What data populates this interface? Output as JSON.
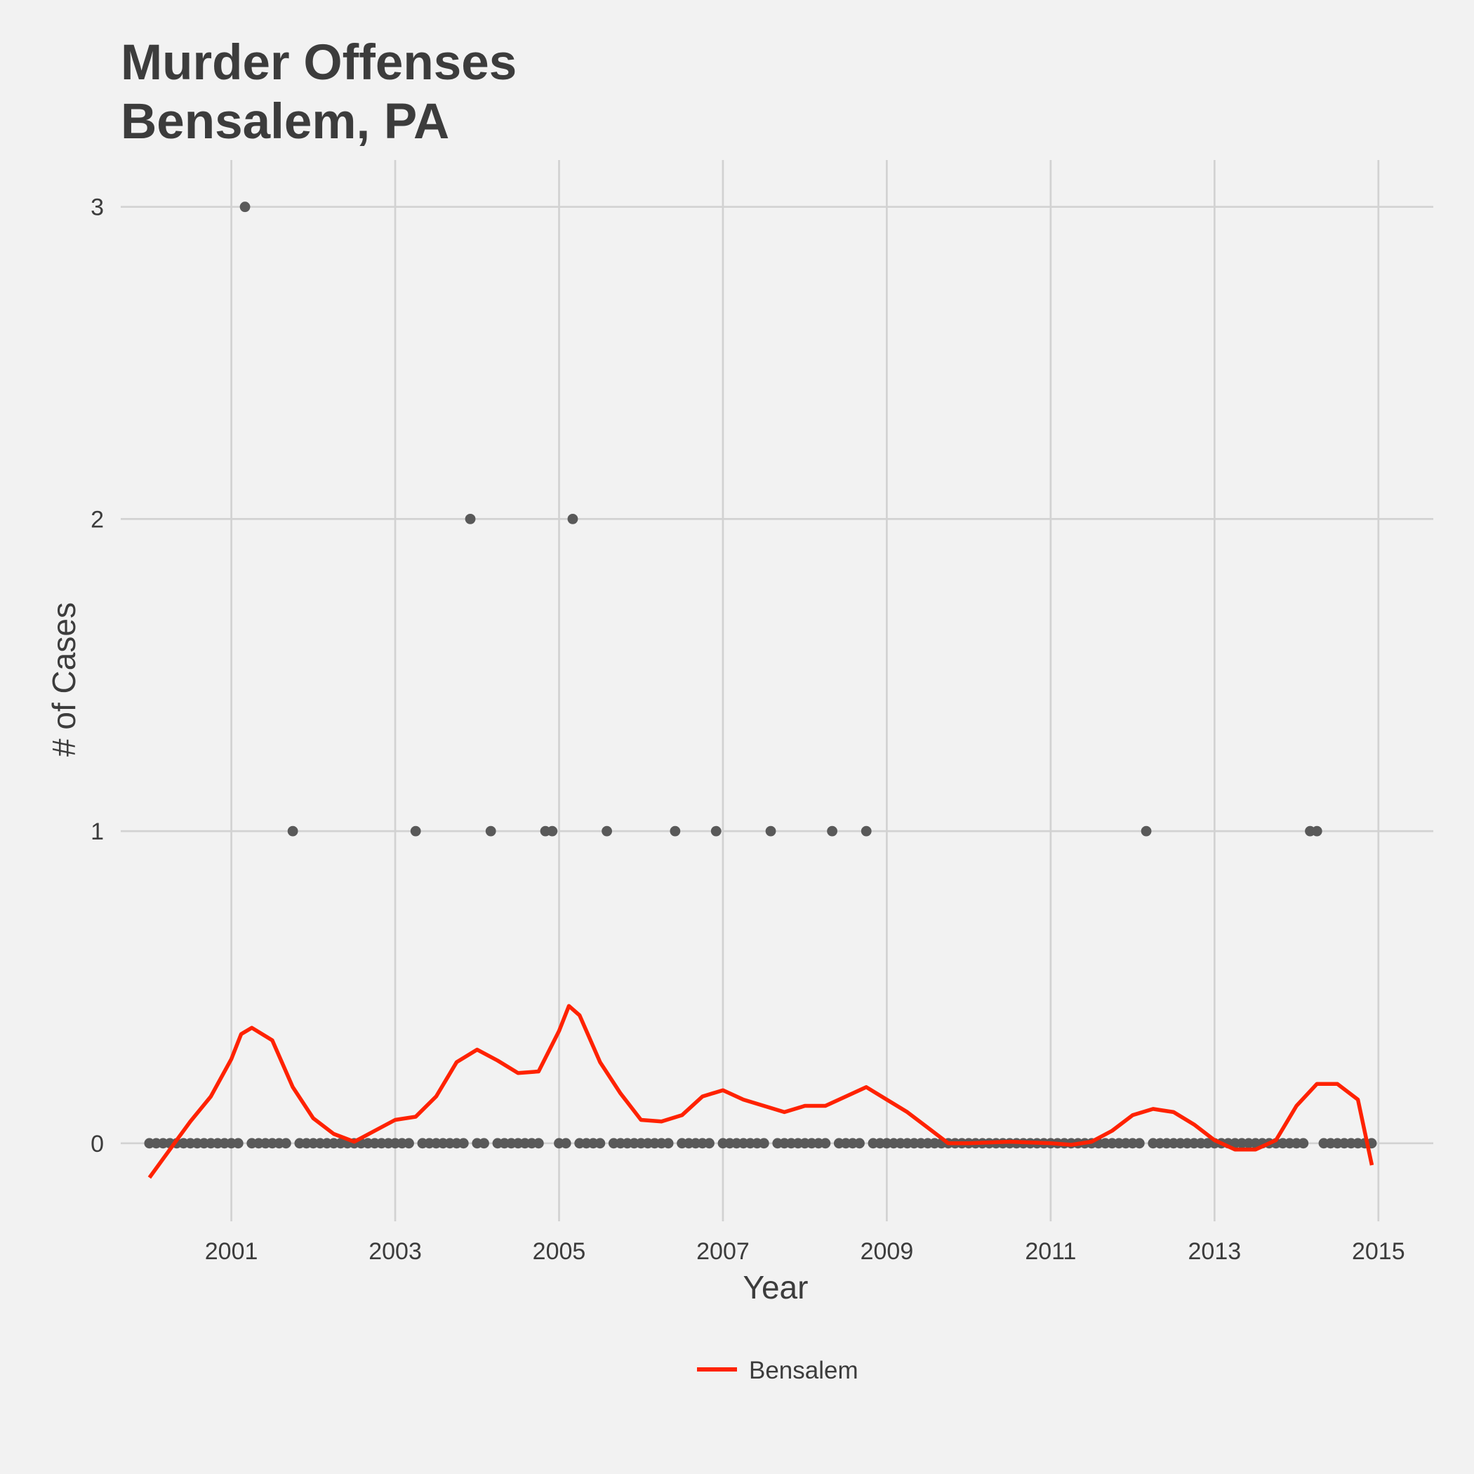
{
  "chart_data": {
    "type": "scatter",
    "title": [
      "Murder Offenses",
      "Bensalem, PA"
    ],
    "xlabel": "Year",
    "ylabel": "# of Cases",
    "xlim": [
      1999.65,
      2015.67
    ],
    "ylim": [
      -0.25,
      3.15
    ],
    "x_ticks": [
      2001,
      2003,
      2005,
      2007,
      2009,
      2011,
      2013,
      2015
    ],
    "y_ticks": [
      0,
      1,
      2,
      3
    ],
    "grid": true,
    "legend": {
      "position": "bottom",
      "entries": [
        "Bensalem"
      ]
    },
    "colors": {
      "points": "#595959",
      "line": "#ff2200",
      "grid": "#d2d2d2",
      "background": "#f2f2f2",
      "text": "#3c3c3c"
    },
    "points": {
      "start_year": 2000,
      "start_month": 1,
      "monthly_values": [
        0,
        0,
        0,
        0,
        0,
        0,
        0,
        0,
        0,
        0,
        0,
        0,
        0,
        0,
        3,
        0,
        0,
        0,
        0,
        0,
        0,
        1,
        0,
        0,
        0,
        0,
        0,
        0,
        0,
        0,
        0,
        0,
        0,
        0,
        0,
        0,
        0,
        0,
        0,
        1,
        0,
        0,
        0,
        0,
        0,
        0,
        0,
        2,
        0,
        0,
        1,
        0,
        0,
        0,
        0,
        0,
        0,
        0,
        1,
        1,
        0,
        0,
        2,
        0,
        0,
        0,
        0,
        1,
        0,
        0,
        0,
        0,
        0,
        0,
        0,
        0,
        0,
        1,
        0,
        0,
        0,
        0,
        0,
        1,
        0,
        0,
        0,
        0,
        0,
        0,
        0,
        1,
        0,
        0,
        0,
        0,
        0,
        0,
        0,
        0,
        1,
        0,
        0,
        0,
        0,
        1,
        0,
        0,
        0,
        0,
        0,
        0,
        0,
        0,
        0,
        0,
        0,
        0,
        0,
        0,
        0,
        0,
        0,
        0,
        0,
        0,
        0,
        0,
        0,
        0,
        0,
        0,
        0,
        0,
        0,
        0,
        0,
        0,
        0,
        0,
        0,
        0,
        0,
        0,
        0,
        0,
        1,
        0,
        0,
        0,
        0,
        0,
        0,
        0,
        0,
        0,
        0,
        0,
        0,
        0,
        0,
        0,
        0,
        0,
        0,
        0,
        0,
        0,
        0,
        0,
        1,
        1,
        0,
        0,
        0,
        0,
        0,
        0,
        0,
        0
      ]
    },
    "series": [
      {
        "name": "Bensalem",
        "type": "line",
        "x": [
          2000.0,
          2000.25,
          2000.5,
          2000.75,
          2001.0,
          2001.12,
          2001.25,
          2001.5,
          2001.75,
          2002.0,
          2002.25,
          2002.5,
          2002.75,
          2003.0,
          2003.25,
          2003.5,
          2003.75,
          2004.0,
          2004.25,
          2004.5,
          2004.75,
          2005.0,
          2005.12,
          2005.25,
          2005.5,
          2005.75,
          2006.0,
          2006.25,
          2006.5,
          2006.75,
          2007.0,
          2007.25,
          2007.5,
          2007.75,
          2008.0,
          2008.25,
          2008.5,
          2008.75,
          2009.0,
          2009.25,
          2009.5,
          2009.75,
          2010.0,
          2010.5,
          2011.0,
          2011.25,
          2011.5,
          2011.75,
          2012.0,
          2012.25,
          2012.5,
          2012.75,
          2013.0,
          2013.25,
          2013.5,
          2013.75,
          2014.0,
          2014.25,
          2014.5,
          2014.75,
          2014.92
        ],
        "y": [
          -0.11,
          -0.02,
          0.07,
          0.15,
          0.27,
          0.35,
          0.37,
          0.33,
          0.18,
          0.08,
          0.03,
          0.005,
          0.04,
          0.075,
          0.085,
          0.15,
          0.26,
          0.3,
          0.265,
          0.225,
          0.23,
          0.36,
          0.44,
          0.41,
          0.26,
          0.16,
          0.075,
          0.07,
          0.09,
          0.15,
          0.17,
          0.14,
          0.12,
          0.1,
          0.12,
          0.12,
          0.15,
          0.18,
          0.14,
          0.1,
          0.05,
          0.0,
          0.0,
          0.005,
          0.0,
          -0.005,
          0.005,
          0.04,
          0.09,
          0.11,
          0.1,
          0.06,
          0.01,
          -0.02,
          -0.02,
          0.01,
          0.12,
          0.19,
          0.19,
          0.14,
          -0.07
        ]
      }
    ]
  }
}
